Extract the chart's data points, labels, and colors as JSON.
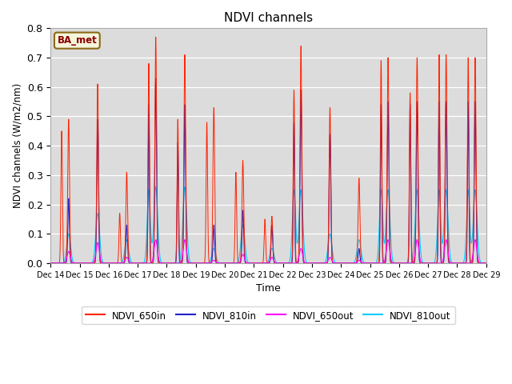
{
  "title": "NDVI channels",
  "ylabel": "NDVI channels (W/m2/nm)",
  "xlabel": "Time",
  "annotation": "BA_met",
  "ylim": [
    0.0,
    0.8
  ],
  "yticks": [
    0.0,
    0.1,
    0.2,
    0.3,
    0.4,
    0.5,
    0.6,
    0.7,
    0.8
  ],
  "colors": {
    "NDVI_650in": "#ff2200",
    "NDVI_810in": "#2222cc",
    "NDVI_650out": "#ff00ff",
    "NDVI_810out": "#00ccff"
  },
  "background_color": "#dcdcdc",
  "x_tick_labels": [
    "Dec 14",
    "Dec 15",
    "Dec 16",
    "Dec 17",
    "Dec 18",
    "Dec 19",
    "Dec 20",
    "Dec 21",
    "Dec 22",
    "Dec 23",
    "Dec 24",
    "Dec 25",
    "Dec 26",
    "Dec 27",
    "Dec 28",
    "Dec 29"
  ],
  "peaks_650in": [
    0.49,
    0.61,
    0.31,
    0.77,
    0.71,
    0.53,
    0.35,
    0.16,
    0.74,
    0.53,
    0.29,
    0.7,
    0.7,
    0.71,
    0.7
  ],
  "peaks_810in": [
    0.22,
    0.49,
    0.13,
    0.63,
    0.54,
    0.13,
    0.18,
    0.13,
    0.59,
    0.44,
    0.05,
    0.55,
    0.55,
    0.55,
    0.55
  ],
  "peaks_650out": [
    0.04,
    0.07,
    0.02,
    0.08,
    0.08,
    0.01,
    0.03,
    0.02,
    0.05,
    0.02,
    0.01,
    0.08,
    0.08,
    0.08,
    0.08
  ],
  "peaks_810out": [
    0.1,
    0.17,
    0.08,
    0.26,
    0.26,
    0.05,
    0.13,
    0.05,
    0.25,
    0.1,
    0.08,
    0.25,
    0.25,
    0.25,
    0.25
  ],
  "secondary_650in": [
    0.45,
    0.0,
    0.17,
    0.68,
    0.49,
    0.48,
    0.31,
    0.15,
    0.59,
    0.0,
    0.0,
    0.69,
    0.58,
    0.71,
    0.7
  ],
  "secondary_810in": [
    0.0,
    0.0,
    0.0,
    0.54,
    0.41,
    0.0,
    0.0,
    0.0,
    0.48,
    0.0,
    0.0,
    0.54,
    0.54,
    0.55,
    0.55
  ],
  "secondary_810out": [
    0.0,
    0.0,
    0.0,
    0.25,
    0.0,
    0.0,
    0.0,
    0.0,
    0.25,
    0.0,
    0.0,
    0.25,
    0.0,
    0.25,
    0.25
  ]
}
